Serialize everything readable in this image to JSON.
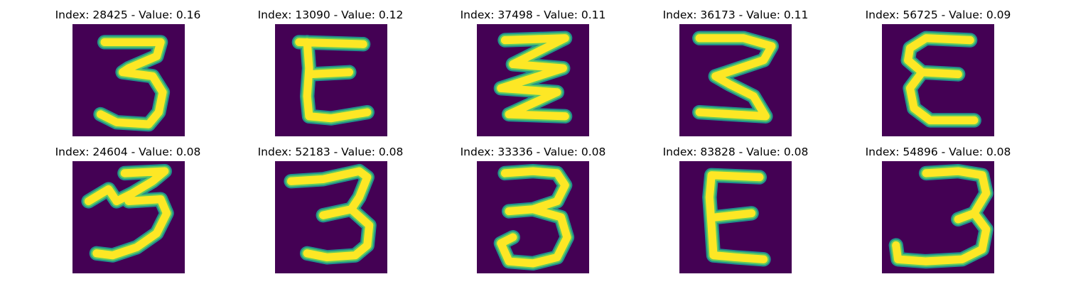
{
  "colors": {
    "background": "#440154",
    "stroke_core": "#fde725",
    "stroke_mid": "#5ec962",
    "stroke_edge": "#21918c"
  },
  "panels": [
    {
      "index": "28425",
      "value": "0.16",
      "title": "Index: 28425 - Value: 0.16",
      "glyph": "digit-3"
    },
    {
      "index": "13090",
      "value": "0.12",
      "title": "Index: 13090 - Value: 0.12",
      "glyph": "letter-E"
    },
    {
      "index": "37498",
      "value": "0.11",
      "title": "Index: 37498 - Value: 0.11",
      "glyph": "zigzag-3"
    },
    {
      "index": "36173",
      "value": "0.11",
      "title": "Index: 36173 - Value: 0.11",
      "glyph": "zigzag-3"
    },
    {
      "index": "56725",
      "value": "0.09",
      "title": "Index: 56725 - Value: 0.09",
      "glyph": "letter-E"
    },
    {
      "index": "24604",
      "value": "0.08",
      "title": "Index: 24604 - Value: 0.08",
      "glyph": "digit-3"
    },
    {
      "index": "52183",
      "value": "0.08",
      "title": "Index: 52183 - Value: 0.08",
      "glyph": "digit-3"
    },
    {
      "index": "33336",
      "value": "0.08",
      "title": "Index: 33336 - Value: 0.08",
      "glyph": "digit-3"
    },
    {
      "index": "83828",
      "value": "0.08",
      "title": "Index: 83828 - Value: 0.08",
      "glyph": "letter-E"
    },
    {
      "index": "54896",
      "value": "0.08",
      "title": "Index: 54896 - Value: 0.08",
      "glyph": "digit-3"
    }
  ]
}
